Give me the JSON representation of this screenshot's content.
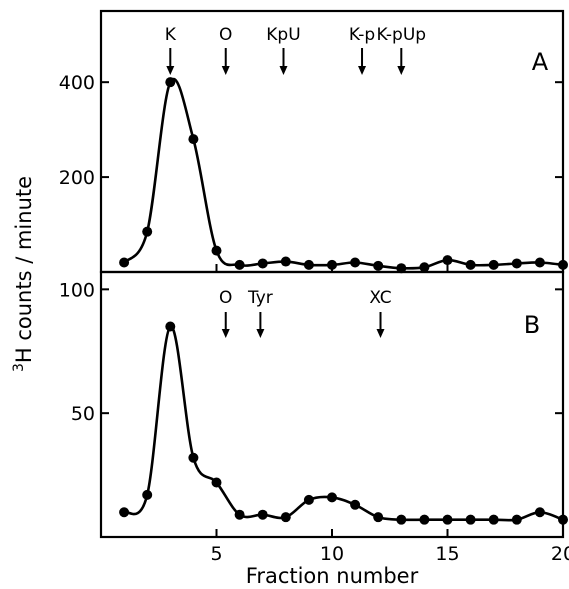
{
  "chart_data": [
    {
      "type": "line",
      "panel": "A",
      "panel_label": "A",
      "xlabel": "Fraction number",
      "ylabel": "3H counts / minute",
      "ylabel_sup": "3",
      "ylabel_rest": "H counts / minute",
      "xlim": [
        0,
        20
      ],
      "ylim": [
        0,
        550
      ],
      "x_ticks": [
        5,
        10,
        15,
        20
      ],
      "y_ticks": [
        200,
        400
      ],
      "y_tick_labels": [
        "200",
        "400"
      ],
      "series": [
        {
          "x": [
            1,
            2,
            3,
            4,
            5,
            6,
            7,
            8,
            9,
            10,
            11,
            12,
            13,
            14,
            15,
            16,
            17,
            18,
            19,
            20
          ],
          "values": [
            20,
            85,
            400,
            280,
            45,
            15,
            18,
            22,
            15,
            15,
            20,
            13,
            8,
            10,
            25,
            15,
            15,
            18,
            20,
            15
          ]
        }
      ],
      "markers": [
        {
          "label": "K",
          "x": 3
        },
        {
          "label": "O",
          "x": 5.4
        },
        {
          "label": "KpU",
          "x": 7.9
        },
        {
          "label": "K-p",
          "x": 11.3
        },
        {
          "label": "K-pUp",
          "x": 13
        }
      ]
    },
    {
      "type": "line",
      "panel": "B",
      "panel_label": "B",
      "xlabel": "Fraction number",
      "xlim": [
        0,
        20
      ],
      "ylim": [
        0,
        107
      ],
      "x_ticks": [
        5,
        10,
        15,
        20
      ],
      "x_tick_labels": [
        "5",
        "10",
        "15",
        "20"
      ],
      "y_ticks": [
        50,
        100
      ],
      "y_tick_labels": [
        "50",
        "100"
      ],
      "series": [
        {
          "x": [
            1,
            2,
            3,
            4,
            5,
            6,
            7,
            8,
            9,
            10,
            11,
            12,
            13,
            14,
            15,
            16,
            17,
            18,
            19,
            20
          ],
          "values": [
            10,
            17,
            85,
            32,
            22,
            9,
            9,
            8,
            15,
            16,
            13,
            8,
            7,
            7,
            7,
            7,
            7,
            7,
            10,
            7
          ]
        }
      ],
      "markers": [
        {
          "label": "O",
          "x": 5.4
        },
        {
          "label": "Tyr",
          "x": 6.9
        },
        {
          "label": "XC",
          "x": 12.1
        }
      ]
    }
  ]
}
